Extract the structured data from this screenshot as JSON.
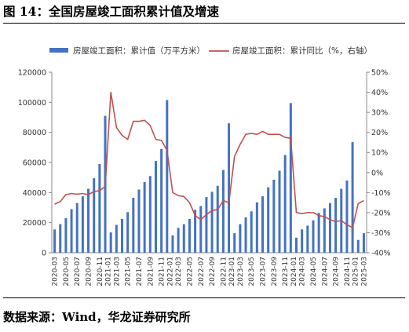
{
  "header": {
    "title": "图 14：全国房屋竣工面积累计值及增速"
  },
  "footer": {
    "source": "数据来源：Wind，华龙证券研究所"
  },
  "chart_data": {
    "type": "bar+line",
    "title": "图 14：全国房屋竣工面积累计值及增速",
    "legend": {
      "position": "top"
    },
    "x": [
      "2020-03",
      "2020-04",
      "2020-05",
      "2020-06",
      "2020-07",
      "2020-08",
      "2020-09",
      "2020-10",
      "2020-11",
      "2020-12",
      "2021-02",
      "2021-03",
      "2021-04",
      "2021-05",
      "2021-06",
      "2021-07",
      "2021-08",
      "2021-09",
      "2021-10",
      "2021-11",
      "2021-12",
      "2022-02",
      "2022-03",
      "2022-04",
      "2022-05",
      "2022-06",
      "2022-07",
      "2022-08",
      "2022-09",
      "2022-10",
      "2022-11",
      "2022-12",
      "2023-02",
      "2023-03",
      "2023-04",
      "2023-05",
      "2023-06",
      "2023-07",
      "2023-08",
      "2023-09",
      "2023-10",
      "2023-11",
      "2023-12",
      "2024-02",
      "2024-03",
      "2024-04",
      "2024-05",
      "2024-06",
      "2024-07",
      "2024-08",
      "2024-09",
      "2024-10",
      "2024-11",
      "2024-12",
      "2025-02",
      "2025-03"
    ],
    "x_tick_labels": [
      "2020-03",
      "2020-05",
      "2020-07",
      "2020-09",
      "2020-11",
      "2021-01",
      "2021-03",
      "2021-05",
      "2021-07",
      "2021-09",
      "2021-11",
      "2022-01",
      "2022-03",
      "2022-05",
      "2022-07",
      "2022-09",
      "2022-11",
      "2023-01",
      "2023-03",
      "2023-05",
      "2023-07",
      "2023-09",
      "2023-11",
      "2024-01",
      "2024-03",
      "2024-05",
      "2024-07",
      "2024-09",
      "2024-11",
      "2025-01",
      "2025-03"
    ],
    "series": [
      {
        "name": "房屋竣工面积：累计值（万平方米）",
        "type": "bar",
        "axis": "left",
        "color": "#4472c4",
        "values": [
          15500,
          19000,
          23000,
          29000,
          33000,
          37500,
          42500,
          49500,
          59000,
          91000,
          13500,
          18500,
          22500,
          27000,
          36500,
          42000,
          47000,
          51000,
          61000,
          69000,
          101500,
          11500,
          16500,
          19000,
          22500,
          28500,
          31000,
          37000,
          40500,
          44500,
          55000,
          86000,
          13000,
          19000,
          23500,
          27500,
          33500,
          37500,
          43500,
          48500,
          54500,
          65000,
          99500,
          10000,
          15500,
          18000,
          21500,
          26500,
          29500,
          33000,
          36500,
          42500,
          48000,
          73500,
          8500,
          13000
        ]
      },
      {
        "name": "房屋竣工面积：累计同比（%，右轴）",
        "type": "line",
        "axis": "right",
        "color": "#c0504d",
        "values": [
          -15.8,
          -14.5,
          -11.0,
          -10.5,
          -10.8,
          -10.5,
          -11.0,
          -9.5,
          -9.0,
          -7.0,
          40.0,
          22.5,
          18.5,
          16.5,
          25.5,
          25.5,
          26.0,
          23.5,
          16.5,
          16.0,
          11.0,
          -10.0,
          -11.5,
          -12.0,
          -15.0,
          -21.5,
          -23.5,
          -21.0,
          -19.0,
          -18.5,
          -14.0,
          -15.0,
          8.0,
          14.0,
          19.0,
          19.5,
          19.0,
          20.5,
          19.0,
          19.0,
          19.0,
          17.5,
          17.0,
          -20.0,
          -20.5,
          -20.0,
          -20.0,
          -21.5,
          -22.0,
          -23.5,
          -24.5,
          -24.0,
          -26.0,
          -27.5,
          -15.5,
          -14.0
        ]
      }
    ],
    "y_left": {
      "min": 0,
      "max": 120000,
      "ticks": [
        "0",
        "20000",
        "40000",
        "60000",
        "80000",
        "100000",
        "120000"
      ]
    },
    "y_right": {
      "min": -40,
      "max": 50,
      "ticks": [
        "-40%",
        "-30%",
        "-20%",
        "-10%",
        "0%",
        "10%",
        "20%",
        "30%",
        "40%",
        "50%"
      ]
    },
    "grid": false
  }
}
